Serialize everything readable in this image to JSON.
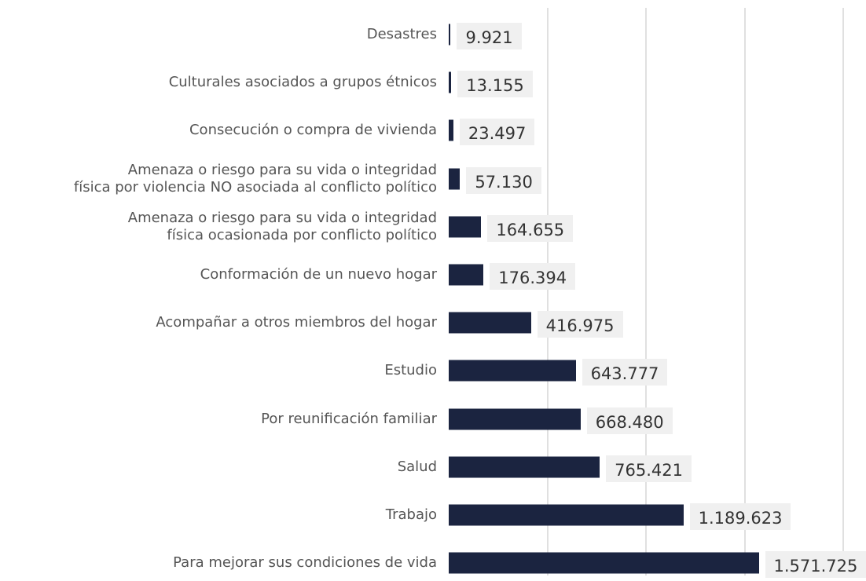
{
  "chart_data": {
    "type": "barh",
    "categories": [
      "Desastres",
      "Culturales asociados a grupos étnicos",
      "Consecución o compra de vivienda",
      "Amenaza o riesgo para su vida o integridad\nfísica por violencia NO asociada al conflicto político",
      "Amenaza o riesgo para su vida o integridad\nfísica ocasionada por conflicto político",
      "Conformación de un nuevo hogar",
      "Acompañar a otros miembros del hogar",
      "Estudio",
      "Por reunificación familiar",
      "Salud",
      "Trabajo",
      "Para mejorar sus condiciones de vida"
    ],
    "values": [
      9921,
      13155,
      23497,
      57130,
      164655,
      176394,
      416975,
      643777,
      668480,
      765421,
      1189623,
      1571725
    ],
    "value_labels": [
      "9.921",
      "13.155",
      "23.497",
      "57.130",
      "164.655",
      "176.394",
      "416.975",
      "643.777",
      "668.480",
      "765.421",
      "1.189.623",
      "1.571.725"
    ],
    "color": "#1b2440",
    "xlim": [
      0,
      2000000
    ],
    "xticks": [
      500000,
      1000000,
      1500000,
      2000000
    ],
    "grid": true
  }
}
